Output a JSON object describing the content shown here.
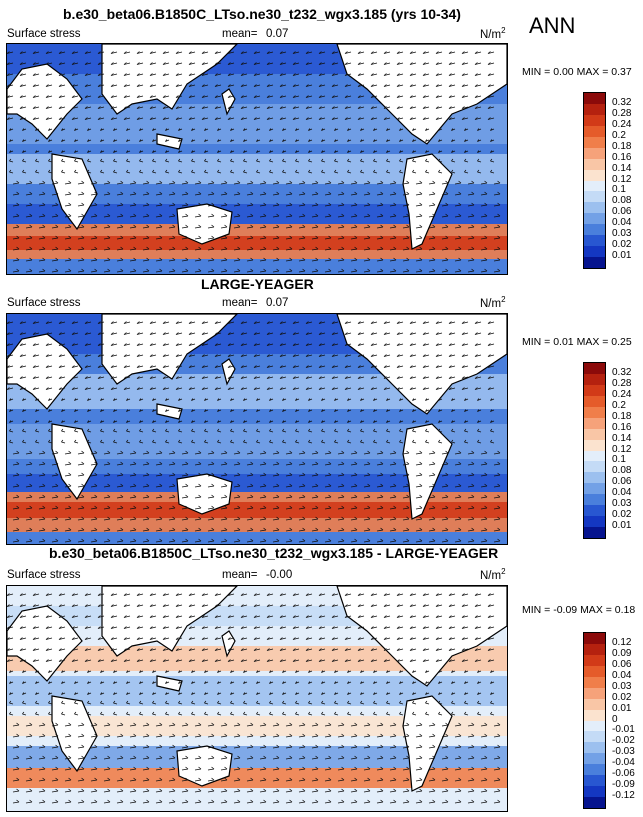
{
  "season": "ANN",
  "units": "N/m",
  "units_exp": "2",
  "panels": [
    {
      "title": "b.e30_beta06.B1850C_LTso.ne30_t232_wgx3.185 (yrs 10-34)",
      "variable": "Surface stress",
      "mean_label": "mean=",
      "mean": "0.07",
      "minmax": "MIN =  0.00 MAX =  0.37"
    },
    {
      "title": "LARGE-YEAGER",
      "variable": "Surface stress",
      "mean_label": "mean=",
      "mean": "0.07",
      "minmax": "MIN =  0.01 MAX =  0.25"
    },
    {
      "title": "b.e30_beta06.B1850C_LTso.ne30_t232_wgx3.185 - LARGE-YEAGER",
      "variable": "Surface stress",
      "mean_label": "mean=",
      "mean": "-0.00",
      "minmax": "MIN = -0.09 MAX =  0.18"
    }
  ],
  "colorbars": {
    "absolute": {
      "labels": [
        "0.32",
        "0.28",
        "0.24",
        "0.2",
        "0.18",
        "0.16",
        "0.14",
        "0.12",
        "0.1",
        "0.08",
        "0.06",
        "0.04",
        "0.03",
        "0.02",
        "0.01"
      ],
      "colors": [
        "#8b0a0a",
        "#b5210f",
        "#d23a18",
        "#e55b2a",
        "#f07e4a",
        "#f6a27a",
        "#f9c6a6",
        "#fbe3cf",
        "#e3eefa",
        "#c4dbf6",
        "#9cc0ef",
        "#73a1e6",
        "#4a7fdc",
        "#2857d1",
        "#1437c2",
        "#06148f"
      ]
    },
    "difference": {
      "labels": [
        "0.12",
        "0.09",
        "0.06",
        "0.04",
        "0.03",
        "0.02",
        "0.01",
        "0",
        "-0.01",
        "-0.02",
        "-0.03",
        "-0.04",
        "-0.06",
        "-0.09",
        "-0.12"
      ],
      "colors": [
        "#8b0a0a",
        "#b5210f",
        "#d23a18",
        "#e55b2a",
        "#f07e4a",
        "#f6a27a",
        "#f9c6a6",
        "#fbe3cf",
        "#e3eefa",
        "#c4dbf6",
        "#9cc0ef",
        "#73a1e6",
        "#4a7fdc",
        "#2857d1",
        "#1437c2",
        "#06148f"
      ]
    }
  }
}
